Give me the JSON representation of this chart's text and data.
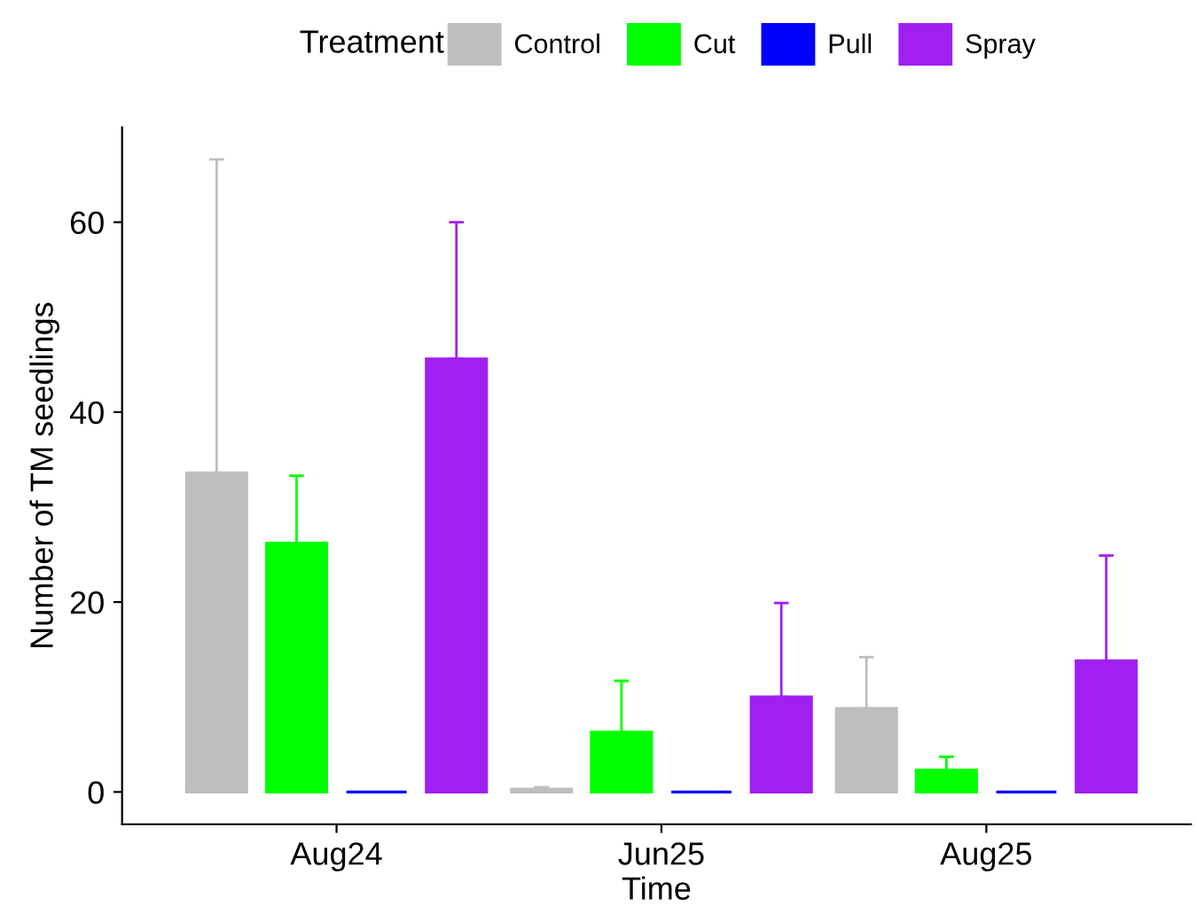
{
  "chart_data": {
    "type": "bar",
    "xlabel": "Time",
    "ylabel": "Number of TM seedlings",
    "legend_title": "Treatment",
    "categories": [
      "Aug24",
      "Jun25",
      "Aug25"
    ],
    "series": [
      {
        "name": "Control",
        "color": "#bebebe",
        "values": [
          33.6,
          0.3,
          8.8
        ],
        "errors": [
          [
            33.6,
            66.6
          ],
          [
            0.3,
            0.5
          ],
          [
            8.8,
            14.2
          ]
        ]
      },
      {
        "name": "Cut",
        "color": "#00ff00",
        "values": [
          26.2,
          6.3,
          2.3
        ],
        "errors": [
          [
            26.2,
            33.3
          ],
          [
            6.3,
            11.7
          ],
          [
            2.3,
            3.7
          ]
        ]
      },
      {
        "name": "Pull",
        "color": "#0000ff",
        "values": [
          0,
          0,
          0
        ],
        "errors": [
          null,
          null,
          null
        ]
      },
      {
        "name": "Spray",
        "color": "#a020f0",
        "values": [
          45.6,
          10.0,
          13.8
        ],
        "errors": [
          [
            45.6,
            60
          ],
          [
            10.0,
            19.9
          ],
          [
            13.8,
            24.9
          ]
        ]
      }
    ],
    "ylim": [
      -3.4,
      70
    ],
    "yticks": [
      0,
      20,
      40,
      60
    ],
    "grid": false,
    "legend": "top"
  }
}
